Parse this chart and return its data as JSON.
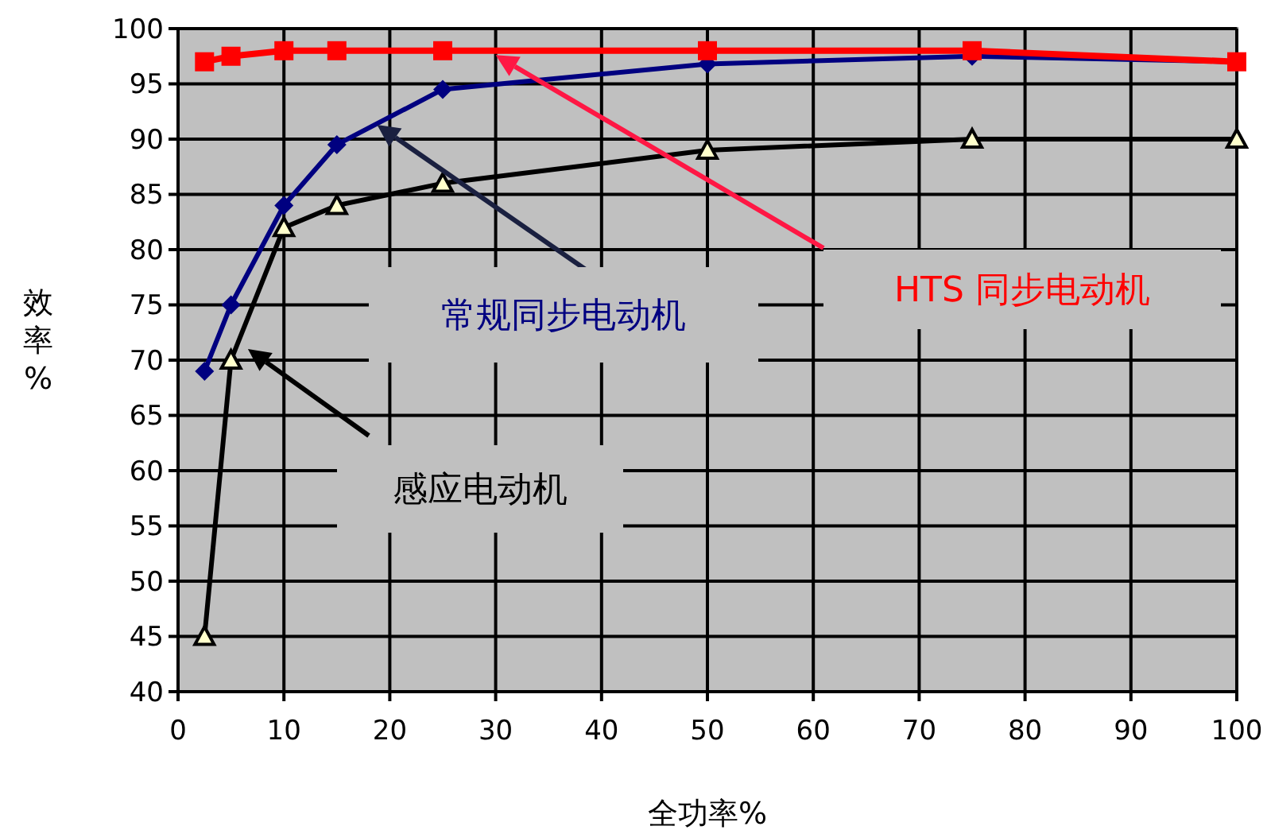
{
  "chart_data": {
    "type": "line",
    "xlabel": "全功率%",
    "ylabel": "效率%",
    "xlim": [
      0,
      100
    ],
    "ylim": [
      40,
      100
    ],
    "xticks": [
      0,
      10,
      20,
      30,
      40,
      50,
      60,
      70,
      80,
      90,
      100
    ],
    "yticks": [
      40,
      45,
      50,
      55,
      60,
      65,
      70,
      75,
      80,
      85,
      90,
      95,
      100
    ],
    "grid": true,
    "line_style": "solid",
    "x": [
      2.5,
      5,
      10,
      15,
      25,
      50,
      75,
      100
    ],
    "series": [
      {
        "name": "HTS 同步电动机",
        "color": "#ff0000",
        "marker": "square",
        "values": [
          97,
          97.5,
          98,
          98,
          98,
          98,
          98,
          97
        ]
      },
      {
        "name": "常规同步电动机",
        "color": "#000080",
        "marker": "diamond",
        "values": [
          69,
          75,
          84,
          89.5,
          94.5,
          96.8,
          97.5,
          97
        ]
      },
      {
        "name": "感应电动机",
        "color": "#000000",
        "marker": "triangle",
        "values": [
          45,
          70,
          82,
          84,
          86,
          89,
          90,
          90
        ]
      }
    ]
  }
}
